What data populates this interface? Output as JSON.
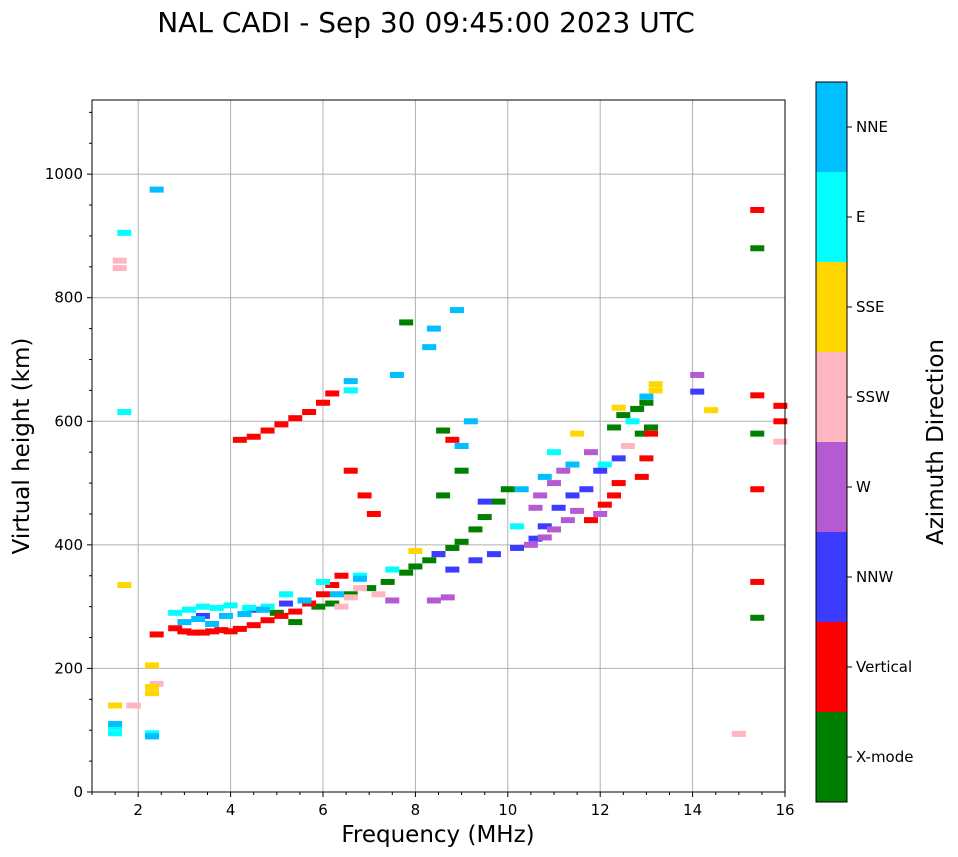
{
  "chart_data": {
    "type": "scatter",
    "title": "NAL CADI - Sep 30 09:45:00 2023 UTC",
    "xlabel": "Frequency (MHz)",
    "ylabel": "Virtual height (km)",
    "xlim": [
      1,
      16
    ],
    "ylim": [
      0,
      1120
    ],
    "xticks": [
      2,
      4,
      6,
      8,
      10,
      12,
      14,
      16
    ],
    "yticks": [
      0,
      200,
      400,
      600,
      800,
      1000
    ],
    "grid": true,
    "colorbar": {
      "label": "Azimuth Direction",
      "categories": [
        {
          "name": "X-mode",
          "color": "#008000"
        },
        {
          "name": "Vertical",
          "color": "#ff0000"
        },
        {
          "name": "NNW",
          "color": "#3c3cff"
        },
        {
          "name": "W",
          "color": "#b45ad2"
        },
        {
          "name": "SSW",
          "color": "#ffb6c1"
        },
        {
          "name": "SSE",
          "color": "#ffd700"
        },
        {
          "name": "E",
          "color": "#00ffff"
        },
        {
          "name": "NNE",
          "color": "#00bfff"
        }
      ]
    },
    "series": [
      {
        "name": "X-mode",
        "points": [
          [
            5.0,
            290
          ],
          [
            5.4,
            275
          ],
          [
            5.9,
            300
          ],
          [
            6.2,
            305
          ],
          [
            6.6,
            320
          ],
          [
            7.0,
            330
          ],
          [
            7.4,
            340
          ],
          [
            7.8,
            355
          ],
          [
            8.0,
            365
          ],
          [
            8.3,
            375
          ],
          [
            8.5,
            385
          ],
          [
            8.8,
            395
          ],
          [
            9.0,
            405
          ],
          [
            9.3,
            425
          ],
          [
            9.5,
            445
          ],
          [
            9.8,
            470
          ],
          [
            10.0,
            490
          ],
          [
            8.6,
            480
          ],
          [
            9.0,
            520
          ],
          [
            8.6,
            585
          ],
          [
            12.3,
            590
          ],
          [
            12.5,
            610
          ],
          [
            12.8,
            620
          ],
          [
            13.0,
            630
          ],
          [
            12.9,
            580
          ],
          [
            13.1,
            590
          ],
          [
            15.4,
            880
          ],
          [
            15.4,
            580
          ],
          [
            15.4,
            282
          ],
          [
            7.8,
            760
          ]
        ]
      },
      {
        "name": "Vertical",
        "points": [
          [
            2.8,
            265
          ],
          [
            3.0,
            260
          ],
          [
            3.2,
            258
          ],
          [
            3.4,
            258
          ],
          [
            3.6,
            260
          ],
          [
            3.8,
            262
          ],
          [
            4.0,
            260
          ],
          [
            4.2,
            264
          ],
          [
            4.5,
            270
          ],
          [
            4.8,
            278
          ],
          [
            5.1,
            285
          ],
          [
            5.4,
            292
          ],
          [
            5.7,
            305
          ],
          [
            6.0,
            320
          ],
          [
            6.2,
            335
          ],
          [
            6.4,
            350
          ],
          [
            4.2,
            570
          ],
          [
            4.5,
            575
          ],
          [
            4.8,
            585
          ],
          [
            5.1,
            595
          ],
          [
            5.4,
            605
          ],
          [
            5.7,
            615
          ],
          [
            6.0,
            630
          ],
          [
            6.2,
            645
          ],
          [
            6.6,
            520
          ],
          [
            6.9,
            480
          ],
          [
            7.1,
            450
          ],
          [
            11.8,
            440
          ],
          [
            12.1,
            465
          ],
          [
            12.3,
            480
          ],
          [
            12.4,
            500
          ],
          [
            12.9,
            510
          ],
          [
            13.0,
            540
          ],
          [
            13.1,
            580
          ],
          [
            15.4,
            942
          ],
          [
            15.4,
            642
          ],
          [
            15.4,
            490
          ],
          [
            15.4,
            340
          ],
          [
            15.9,
            625
          ],
          [
            15.9,
            600
          ],
          [
            2.4,
            255
          ],
          [
            8.8,
            570
          ]
        ]
      },
      {
        "name": "NNW",
        "points": [
          [
            3.4,
            285
          ],
          [
            4.5,
            295
          ],
          [
            5.2,
            305
          ],
          [
            8.5,
            385
          ],
          [
            8.8,
            360
          ],
          [
            9.3,
            375
          ],
          [
            9.7,
            385
          ],
          [
            10.2,
            395
          ],
          [
            10.6,
            410
          ],
          [
            10.8,
            430
          ],
          [
            11.1,
            460
          ],
          [
            11.4,
            480
          ],
          [
            11.7,
            490
          ],
          [
            12.0,
            520
          ],
          [
            12.4,
            540
          ],
          [
            14.1,
            648
          ],
          [
            9.5,
            470
          ],
          [
            1.9,
            140
          ]
        ]
      },
      {
        "name": "W",
        "points": [
          [
            10.5,
            400
          ],
          [
            10.8,
            412
          ],
          [
            11.0,
            425
          ],
          [
            11.3,
            440
          ],
          [
            11.5,
            455
          ],
          [
            10.7,
            480
          ],
          [
            11.0,
            500
          ],
          [
            11.2,
            520
          ],
          [
            8.4,
            310
          ],
          [
            8.7,
            315
          ],
          [
            7.5,
            310
          ],
          [
            10.6,
            460
          ],
          [
            14.1,
            675
          ],
          [
            11.8,
            550
          ],
          [
            12.0,
            450
          ]
        ]
      },
      {
        "name": "SSW",
        "points": [
          [
            6.4,
            300
          ],
          [
            6.6,
            315
          ],
          [
            6.8,
            330
          ],
          [
            15.0,
            94
          ],
          [
            15.9,
            567
          ],
          [
            2.4,
            175
          ],
          [
            1.9,
            140
          ],
          [
            6.6,
            650
          ],
          [
            12.6,
            560
          ],
          [
            1.6,
            860
          ],
          [
            1.6,
            848
          ],
          [
            7.2,
            320
          ]
        ]
      },
      {
        "name": "SSE",
        "points": [
          [
            2.3,
            205
          ],
          [
            2.3,
            170
          ],
          [
            2.3,
            160
          ],
          [
            14.4,
            618
          ],
          [
            13.2,
            660
          ],
          [
            13.2,
            650
          ],
          [
            1.7,
            335
          ],
          [
            12.4,
            622
          ],
          [
            8.0,
            390
          ],
          [
            1.5,
            140
          ],
          [
            11.5,
            580
          ]
        ]
      },
      {
        "name": "E",
        "points": [
          [
            2.8,
            290
          ],
          [
            3.1,
            295
          ],
          [
            3.4,
            300
          ],
          [
            3.7,
            298
          ],
          [
            4.0,
            302
          ],
          [
            4.4,
            298
          ],
          [
            4.8,
            300
          ],
          [
            5.2,
            320
          ],
          [
            6.0,
            340
          ],
          [
            6.8,
            350
          ],
          [
            7.5,
            360
          ],
          [
            1.5,
            105
          ],
          [
            1.5,
            95
          ],
          [
            2.3,
            95
          ],
          [
            1.7,
            615
          ],
          [
            1.7,
            905
          ],
          [
            12.1,
            530
          ],
          [
            6.6,
            650
          ],
          [
            10.2,
            430
          ],
          [
            11.0,
            550
          ],
          [
            12.7,
            600
          ]
        ]
      },
      {
        "name": "NNE",
        "points": [
          [
            3.0,
            275
          ],
          [
            3.3,
            280
          ],
          [
            3.6,
            272
          ],
          [
            3.9,
            285
          ],
          [
            4.3,
            288
          ],
          [
            4.7,
            295
          ],
          [
            5.6,
            310
          ],
          [
            6.3,
            320
          ],
          [
            6.8,
            345
          ],
          [
            2.4,
            975
          ],
          [
            8.9,
            780
          ],
          [
            8.4,
            750
          ],
          [
            8.3,
            720
          ],
          [
            13.0,
            640
          ],
          [
            9.0,
            560
          ],
          [
            10.3,
            490
          ],
          [
            10.8,
            510
          ],
          [
            11.4,
            530
          ],
          [
            1.5,
            110
          ],
          [
            2.3,
            90
          ],
          [
            9.2,
            600
          ],
          [
            6.6,
            665
          ],
          [
            7.6,
            675
          ]
        ]
      }
    ]
  }
}
